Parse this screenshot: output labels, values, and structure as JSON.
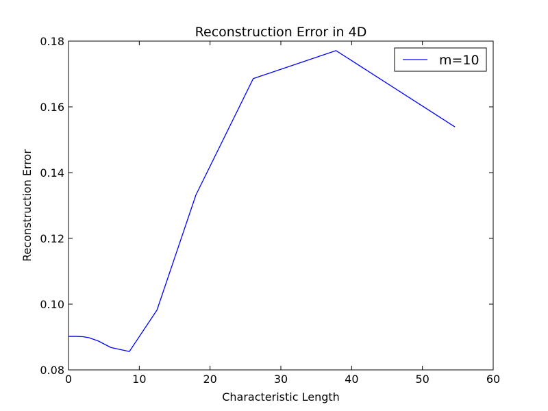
{
  "chart_data": {
    "type": "line",
    "title": "Reconstruction Error in 4D",
    "xlabel": "Characteristic Length",
    "ylabel": "Reconstruction Error",
    "xlim": [
      0,
      60
    ],
    "ylim": [
      0.08,
      0.18
    ],
    "x_ticks": [
      "0",
      "10",
      "20",
      "30",
      "40",
      "50",
      "60"
    ],
    "y_ticks": [
      "0.08",
      "0.10",
      "0.12",
      "0.14",
      "0.16",
      "0.18"
    ],
    "grid": false,
    "legend_position": "top-right",
    "series": [
      {
        "name": "m=10",
        "color": "#0000ff",
        "x": [
          0,
          1.0,
          2.0,
          2.9,
          4.2,
          6.0,
          8.6,
          12.5,
          18.0,
          26.1,
          37.8,
          54.6
        ],
        "y": [
          0.0902,
          0.0902,
          0.0901,
          0.0898,
          0.0888,
          0.0868,
          0.0856,
          0.0982,
          0.1332,
          0.1686,
          0.1771,
          0.1539
        ]
      }
    ]
  }
}
